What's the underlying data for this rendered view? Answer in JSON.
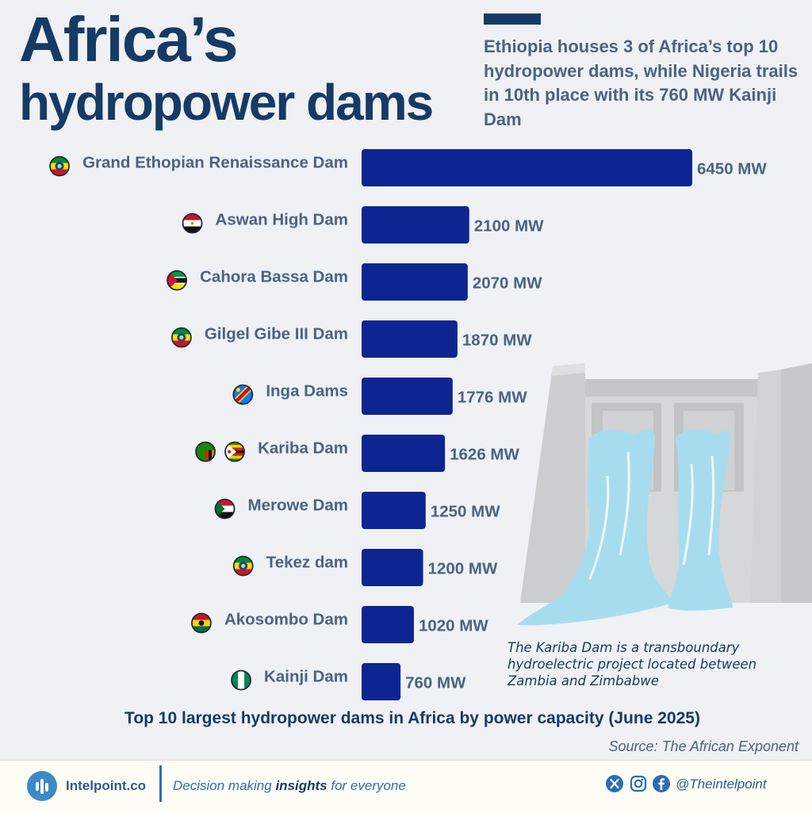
{
  "header": {
    "title_line1": "Africa’s",
    "title_line2": "hydropower dams",
    "subtitle": "Ethiopia houses 3 of Africa’s top 10 hydropower dams, while Nigeria trails in 10th place with its 760 MW Kainji Dam"
  },
  "chart_data": {
    "type": "bar",
    "orientation": "horizontal",
    "title": "Top 10 largest hydropower dams in Africa by power capacity (June 2025)",
    "unit": "MW",
    "categories": [
      "Grand Ethopian Renaissance Dam",
      "Aswan High Dam",
      "Cahora Bassa Dam",
      "Gilgel Gibe III Dam",
      "Inga Dams",
      "Kariba Dam",
      "Merowe Dam",
      "Tekez dam",
      "Akosombo Dam",
      "Kainji Dam"
    ],
    "values": [
      6450,
      2100,
      2070,
      1870,
      1776,
      1626,
      1250,
      1200,
      1020,
      760
    ],
    "value_labels": [
      "6450 MW",
      "2100 MW",
      "2070 MW",
      "1870 MW",
      "1776 MW",
      "1626 MW",
      "1250 MW",
      "1200 MW",
      "1020 MW",
      "760 MW"
    ],
    "flags": [
      [
        "ethiopia"
      ],
      [
        "egypt"
      ],
      [
        "mozambique"
      ],
      [
        "ethiopia"
      ],
      [
        "dr-congo"
      ],
      [
        "zambia",
        "zimbabwe"
      ],
      [
        "sudan"
      ],
      [
        "ethiopia"
      ],
      [
        "ghana"
      ],
      [
        "nigeria"
      ]
    ],
    "bar_color": "#0d2591"
  },
  "annotation": "The Kariba Dam is a transboundary hydroelectric project located between Zambia and Zimbabwe",
  "source": "Source: The African Exponent",
  "footer": {
    "brand": "Intelpoint.co",
    "tagline_pre": "Decision making ",
    "tagline_bold": "insights",
    "tagline_post": " for everyone",
    "social_icons": [
      "x-icon",
      "instagram-icon",
      "facebook-icon"
    ],
    "handle": "@Theintelpoint"
  },
  "colors": {
    "title": "#163a66",
    "text": "#4a6383",
    "background": "#eff1f4",
    "accent": "#3c89c6"
  }
}
